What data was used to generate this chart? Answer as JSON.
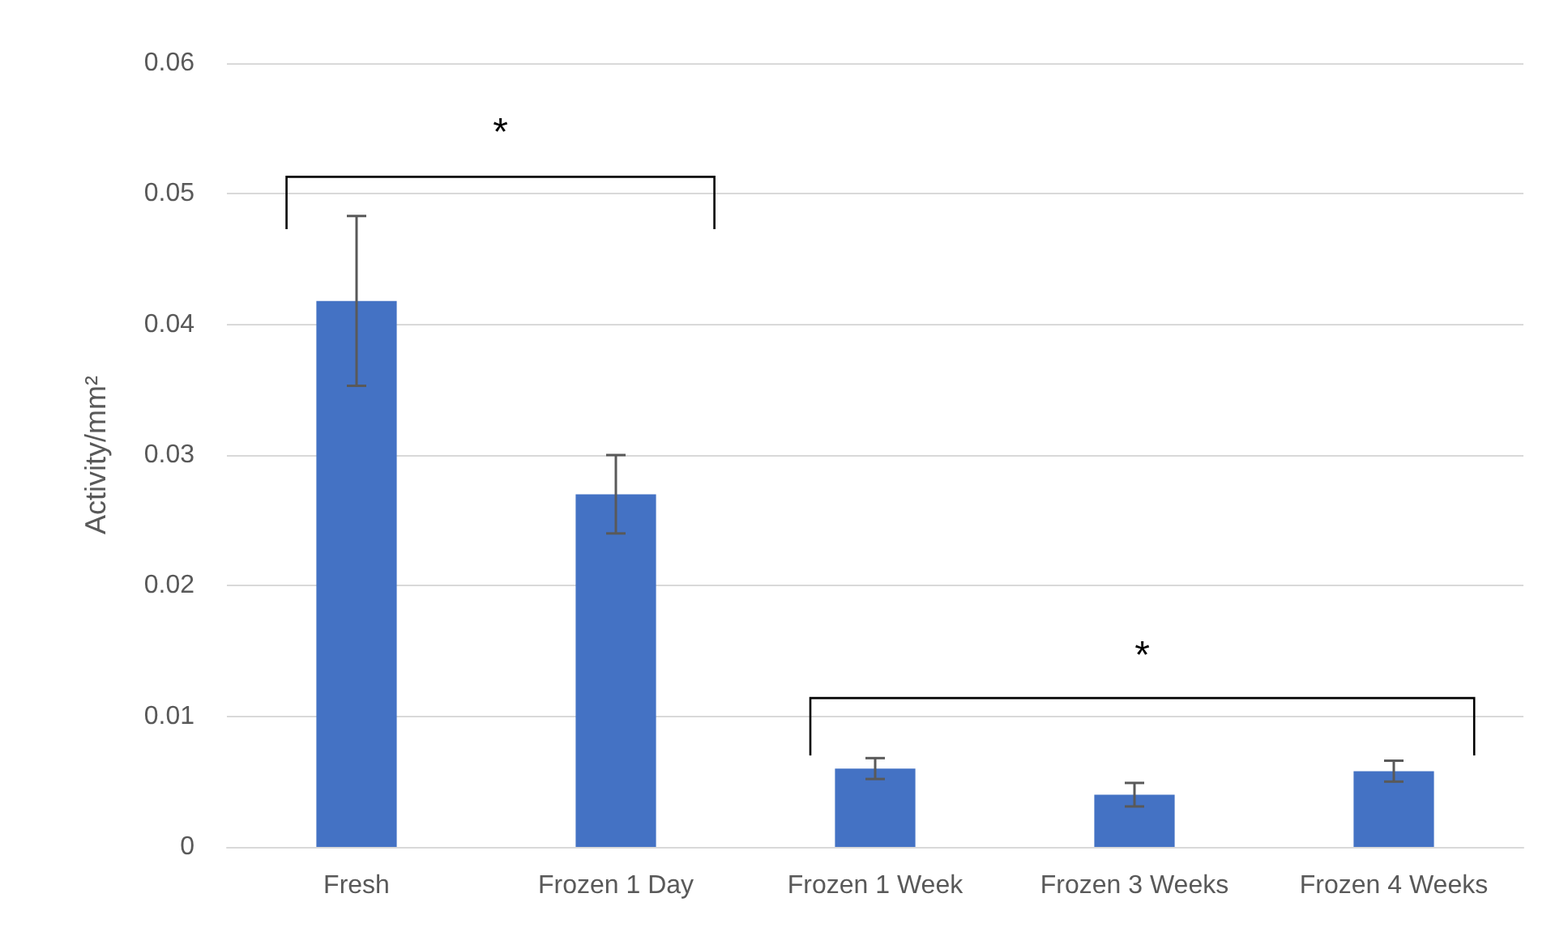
{
  "chart_data": {
    "type": "bar",
    "ylabel": "Activity/mm²",
    "categories": [
      "Fresh",
      "Frozen 1 Day",
      "Frozen 1 Week",
      "Frozen 3 Weeks",
      "Frozen 4 Weeks"
    ],
    "values": [
      0.0418,
      0.027,
      0.006,
      0.004,
      0.0058
    ],
    "errors": [
      0.0065,
      0.003,
      0.0008,
      0.0009,
      0.0008
    ],
    "color": "#4472c4",
    "ylim": [
      0,
      0.06
    ],
    "yticks": [
      0,
      0.01,
      0.02,
      0.03,
      0.04,
      0.05,
      0.06
    ],
    "grid": "y",
    "annotations": [
      "*",
      "*"
    ]
  }
}
